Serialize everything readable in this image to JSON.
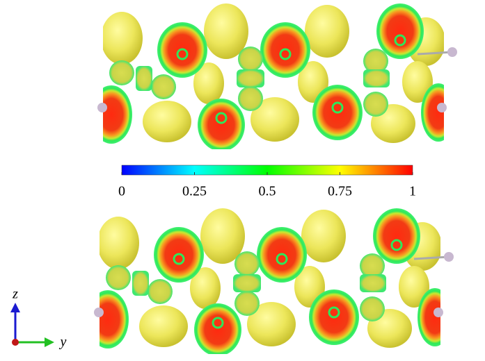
{
  "colorbar": {
    "lim": [
      0,
      1
    ],
    "ticks": [
      0,
      0.25,
      0.5,
      0.75,
      1
    ],
    "colormap": [
      "#0000ff",
      "#00ffff",
      "#00ff00",
      "#ffff00",
      "#ff0000"
    ]
  },
  "axes": {
    "z": "z",
    "y": "y"
  }
}
